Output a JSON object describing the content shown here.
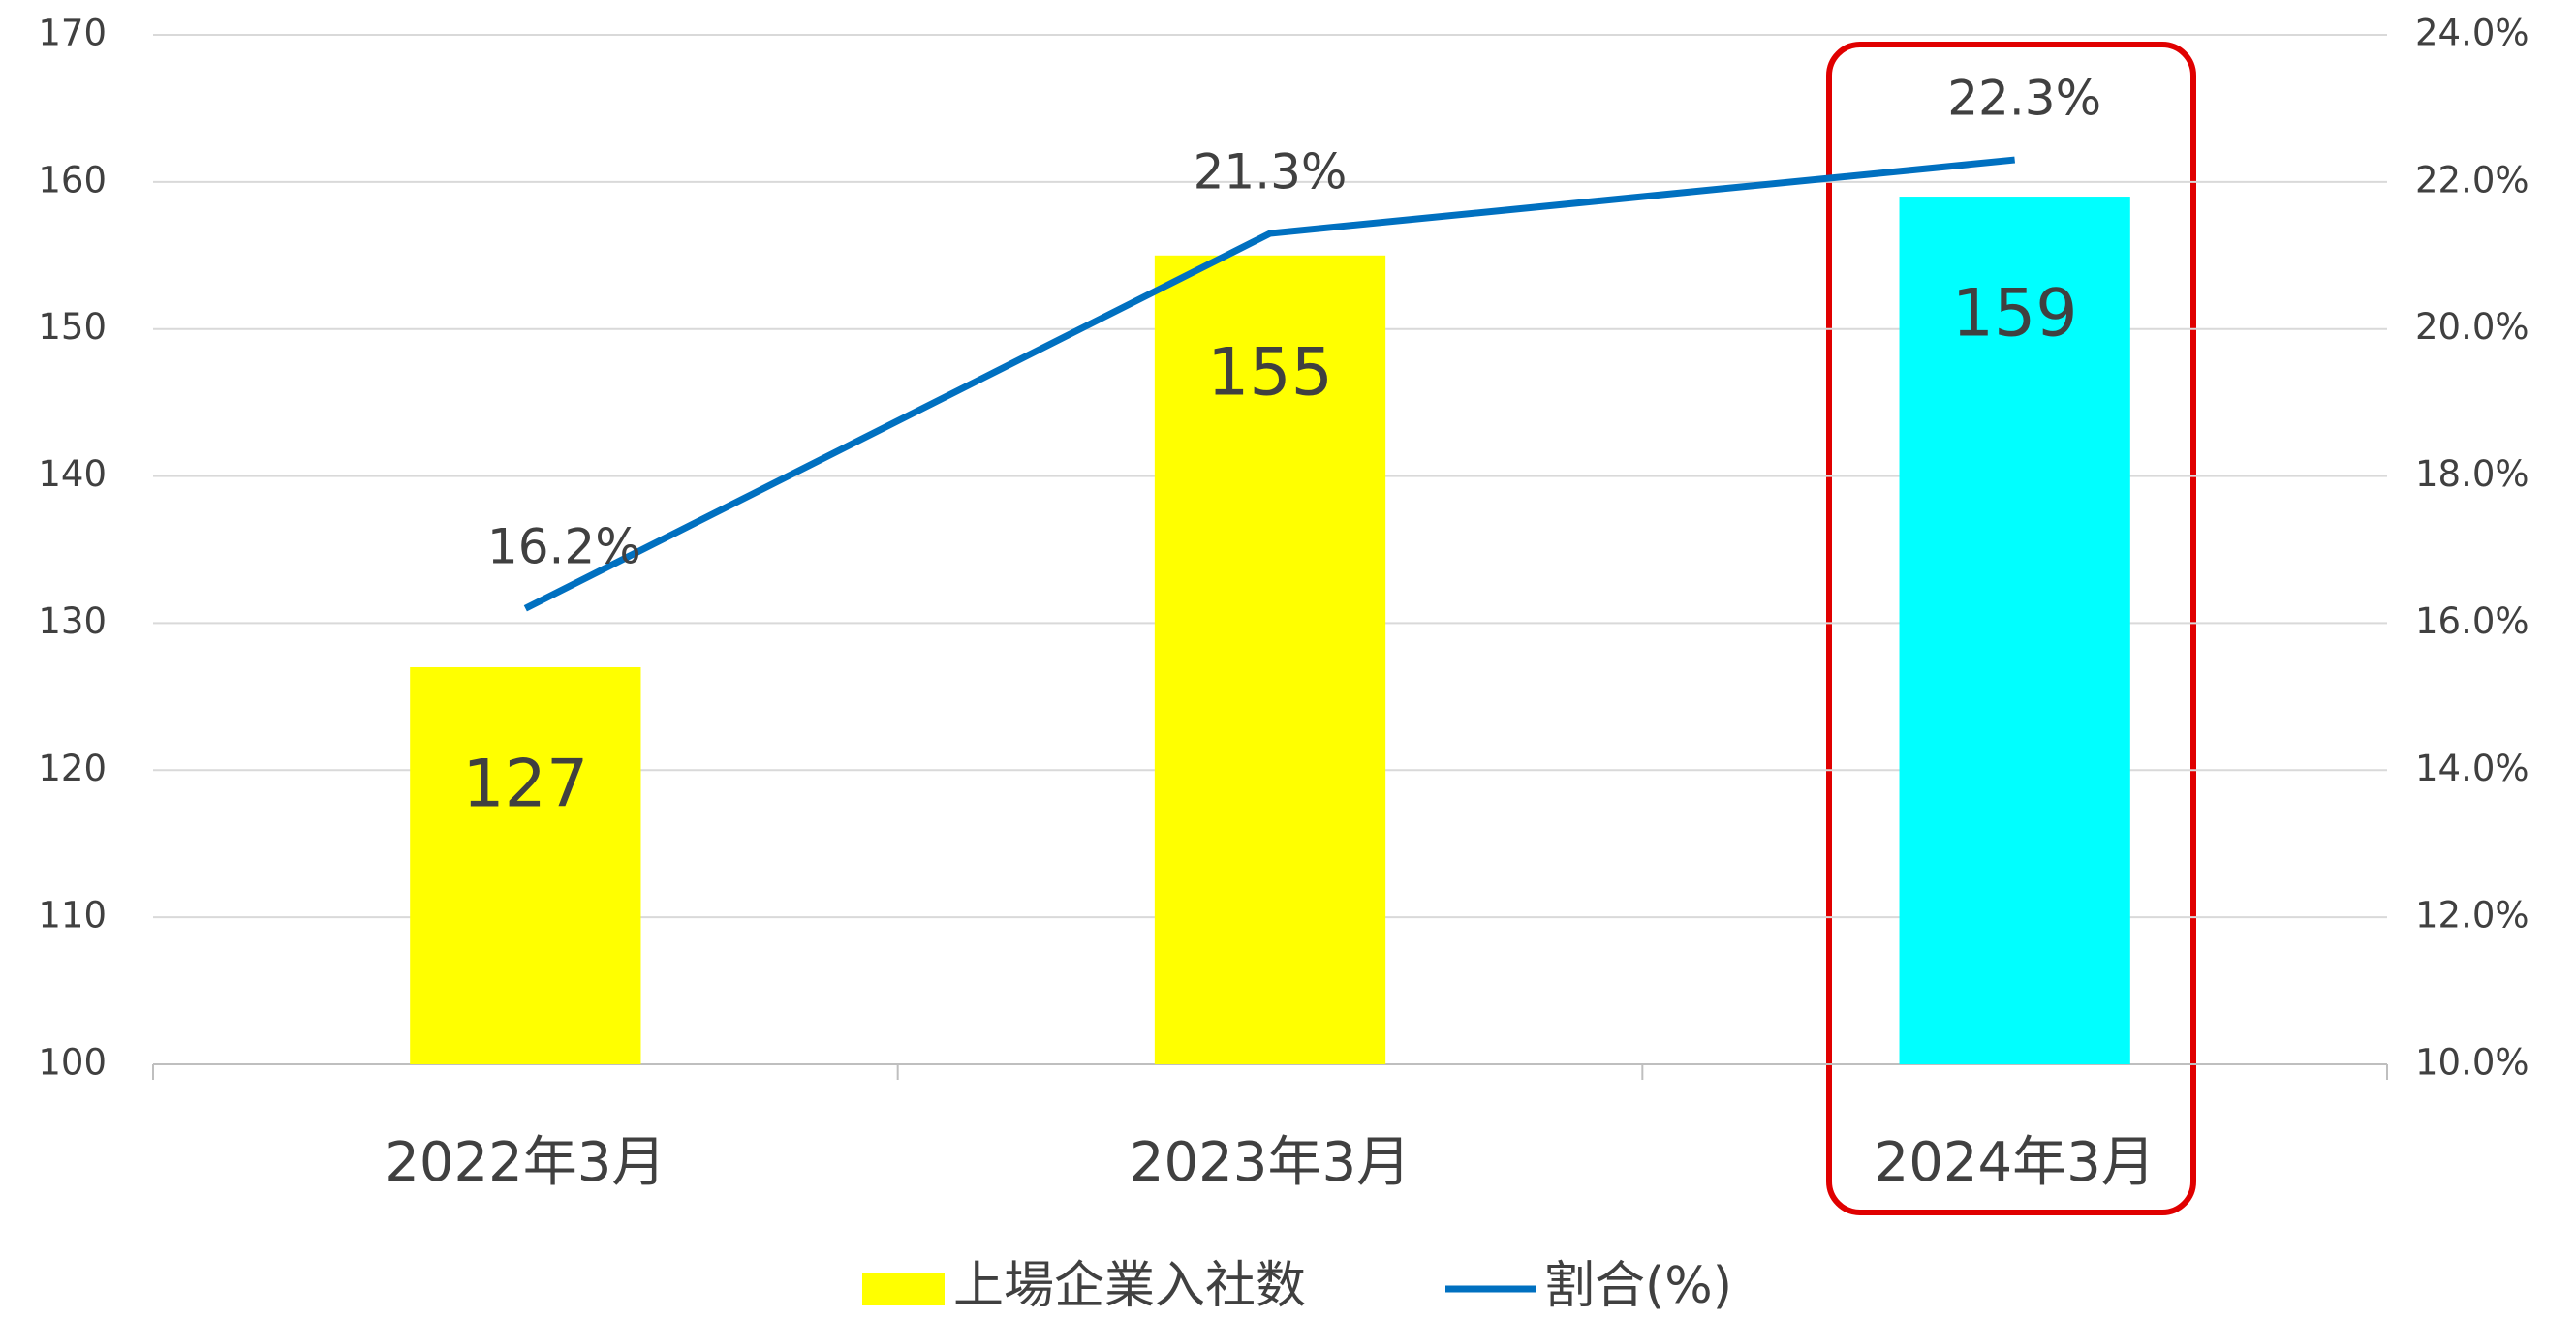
{
  "chart_data": {
    "type": "bar",
    "categories": [
      "2022年3月",
      "2023年3月",
      "2024年3月"
    ],
    "series": [
      {
        "name": "上場企業入社数",
        "type": "bar",
        "color": "#ffff00",
        "colors": [
          "#ffff00",
          "#ffff00",
          "#00ffff"
        ],
        "values": [
          127,
          155,
          159
        ]
      },
      {
        "name": "割合(%)",
        "type": "line",
        "axis": "y2",
        "color": "#0070c0",
        "values": [
          16.2,
          21.3,
          22.3
        ],
        "value_labels": [
          "16.2%",
          "21.3%",
          "22.3%"
        ]
      }
    ],
    "ylim": [
      100,
      170
    ],
    "yticks": [
      100,
      110,
      120,
      130,
      140,
      150,
      160,
      170
    ],
    "y2lim": [
      10,
      24
    ],
    "y2ticks": [
      {
        "value": 10,
        "label": "10.0%"
      },
      {
        "value": 12,
        "label": "12.0%"
      },
      {
        "value": 14,
        "label": "14.0%"
      },
      {
        "value": 16,
        "label": "16.0%"
      },
      {
        "value": 18,
        "label": "18.0%"
      },
      {
        "value": 20,
        "label": "20.0%"
      },
      {
        "value": 22,
        "label": "22.0%"
      },
      {
        "value": 24,
        "label": "24.0%"
      }
    ],
    "grid": true,
    "legend": "bottom"
  }
}
